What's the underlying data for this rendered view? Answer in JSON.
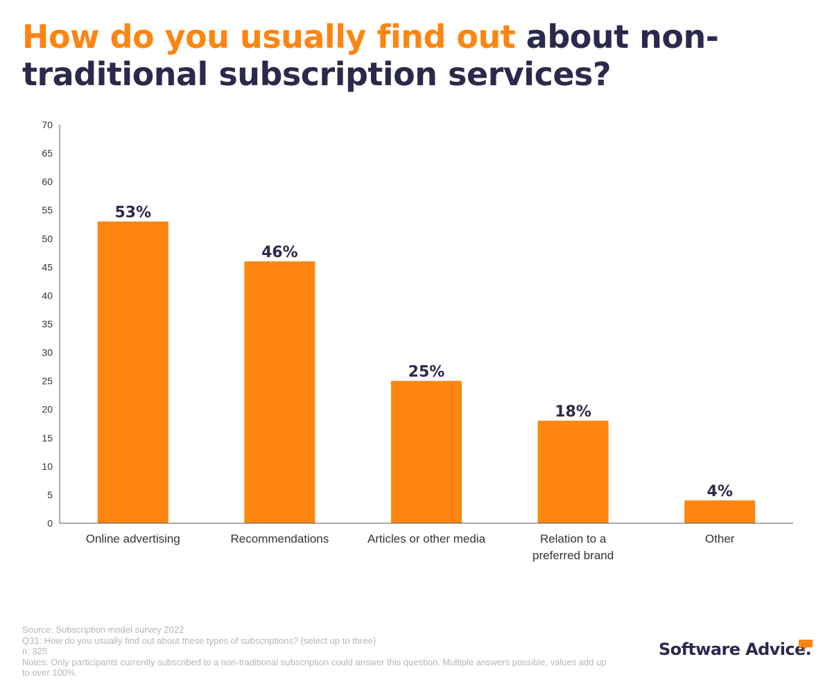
{
  "title": {
    "highlight": "How do you usually find out",
    "rest": " about non-traditional subscription services?"
  },
  "chart_data": {
    "type": "bar",
    "categories": [
      "Online advertising",
      "Recommendations",
      "Articles or other media",
      "Relation to a preferred brand",
      "Other"
    ],
    "values": [
      53,
      46,
      25,
      18,
      4
    ],
    "data_labels": [
      "53%",
      "46%",
      "25%",
      "18%",
      "4%"
    ],
    "yticks": [
      "0",
      "5",
      "10",
      "15",
      "20",
      "25",
      "30",
      "35",
      "40",
      "45",
      "50",
      "55",
      "60",
      "65",
      "70"
    ],
    "ylim": [
      0,
      70
    ],
    "grid": false,
    "xlabel": "",
    "ylabel": ""
  },
  "colors": {
    "bar": "#fd8510",
    "title_accent": "#fd8510",
    "title_main": "#2b2a4c",
    "data_label": "#2b2a4c",
    "axis": "#555555",
    "tick_text": "#333333",
    "footnote": "#b5b5b5"
  },
  "footnotes": {
    "source": "Source: Subscription model survey 2022",
    "question": "Q31: How do you usually find out about these types of subscriptions? (select up to three)",
    "n": "n: 325",
    "notes": "Notes: Only participants currently subscribed to a non-traditional subscription could answer this question. Multiple answers possible, values add up to over 100%."
  },
  "logo": {
    "text": "Software Advice.",
    "icon": "speech-bubble-icon"
  }
}
